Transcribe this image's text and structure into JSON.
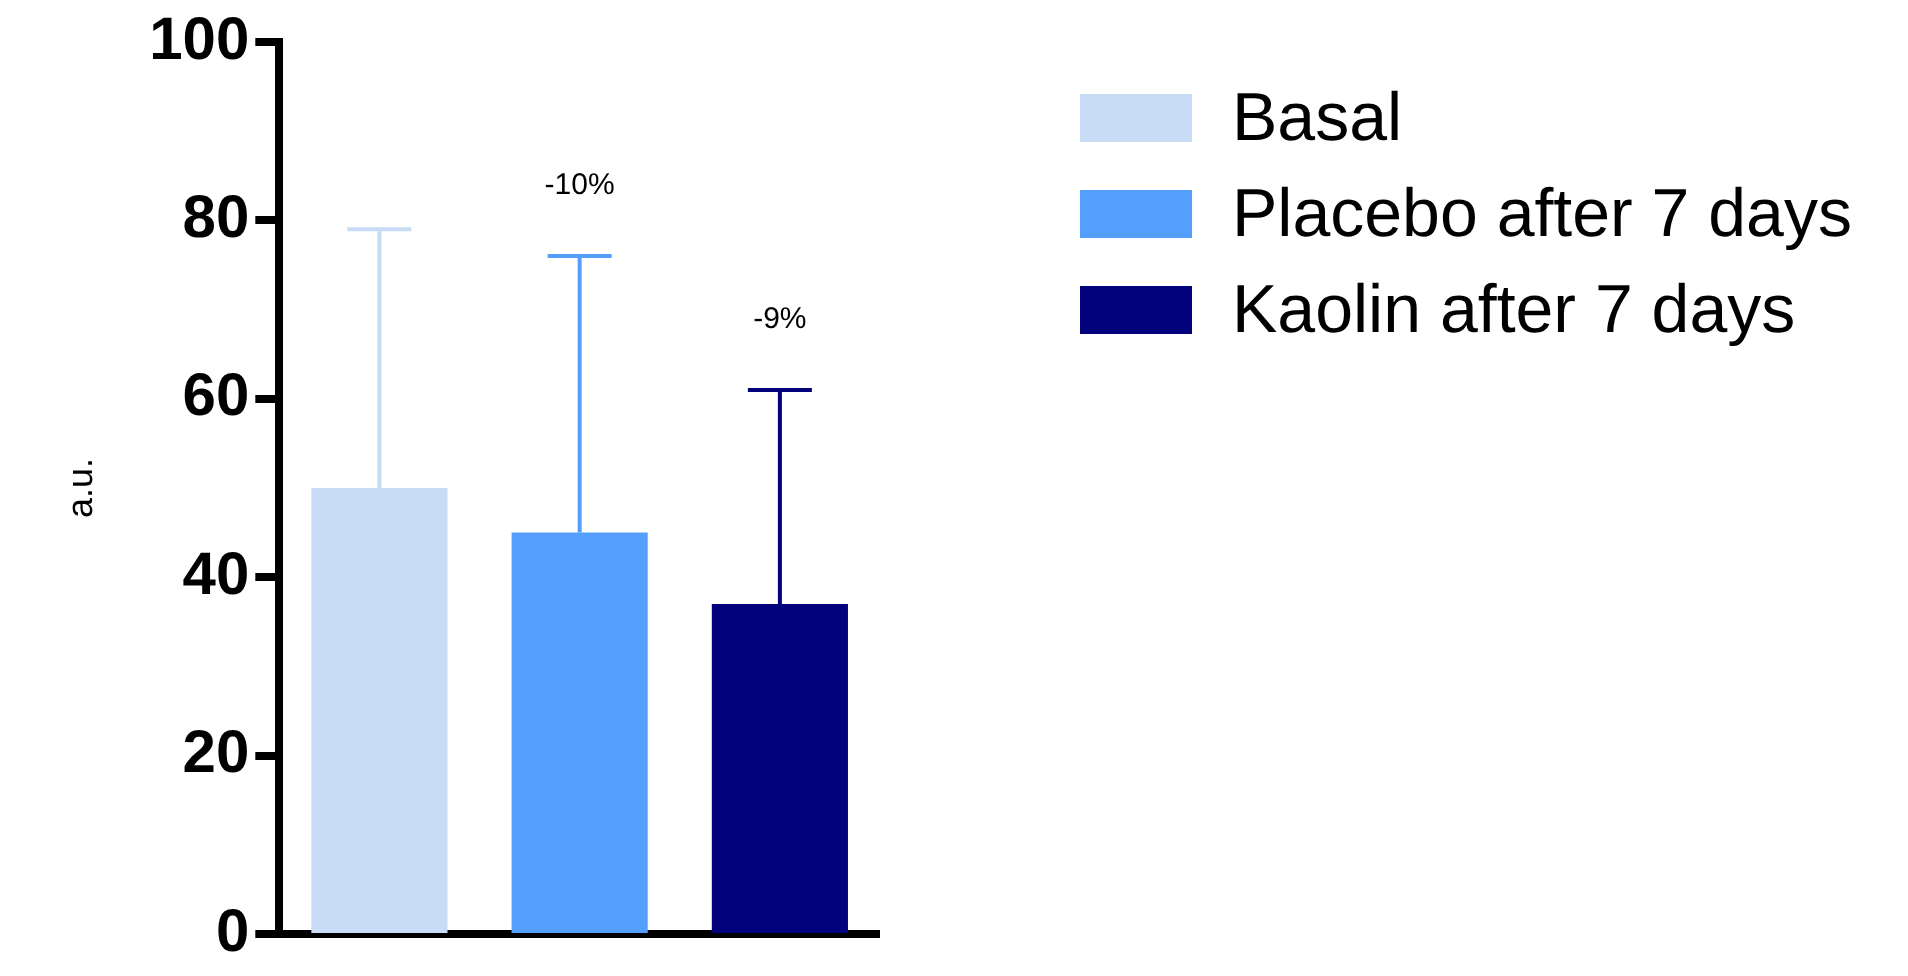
{
  "chart_data": {
    "type": "bar",
    "ylabel": "a.u.",
    "categories": [
      null,
      null,
      null
    ],
    "series": [
      {
        "name": "Basal",
        "color": "#c9dcf5",
        "values": [
          50,
          null,
          null
        ],
        "errors": [
          [
            50,
            79
          ],
          null,
          null
        ]
      },
      {
        "name": "Placebo after 7 days",
        "color": "#559ffc",
        "values": [
          null,
          45,
          null
        ],
        "errors": [
          null,
          [
            45,
            76
          ],
          null
        ]
      },
      {
        "name": "Kaolin after 7 days",
        "color": "#02027d",
        "values": [
          null,
          null,
          37
        ],
        "errors": [
          null,
          null,
          [
            37,
            61
          ]
        ]
      }
    ],
    "annotations": [
      "-10%",
      "-9%"
    ],
    "ylim": [
      0,
      100
    ],
    "yticks": [
      0,
      20,
      40,
      60,
      80,
      100
    ],
    "grid": false,
    "legend": "top right"
  }
}
